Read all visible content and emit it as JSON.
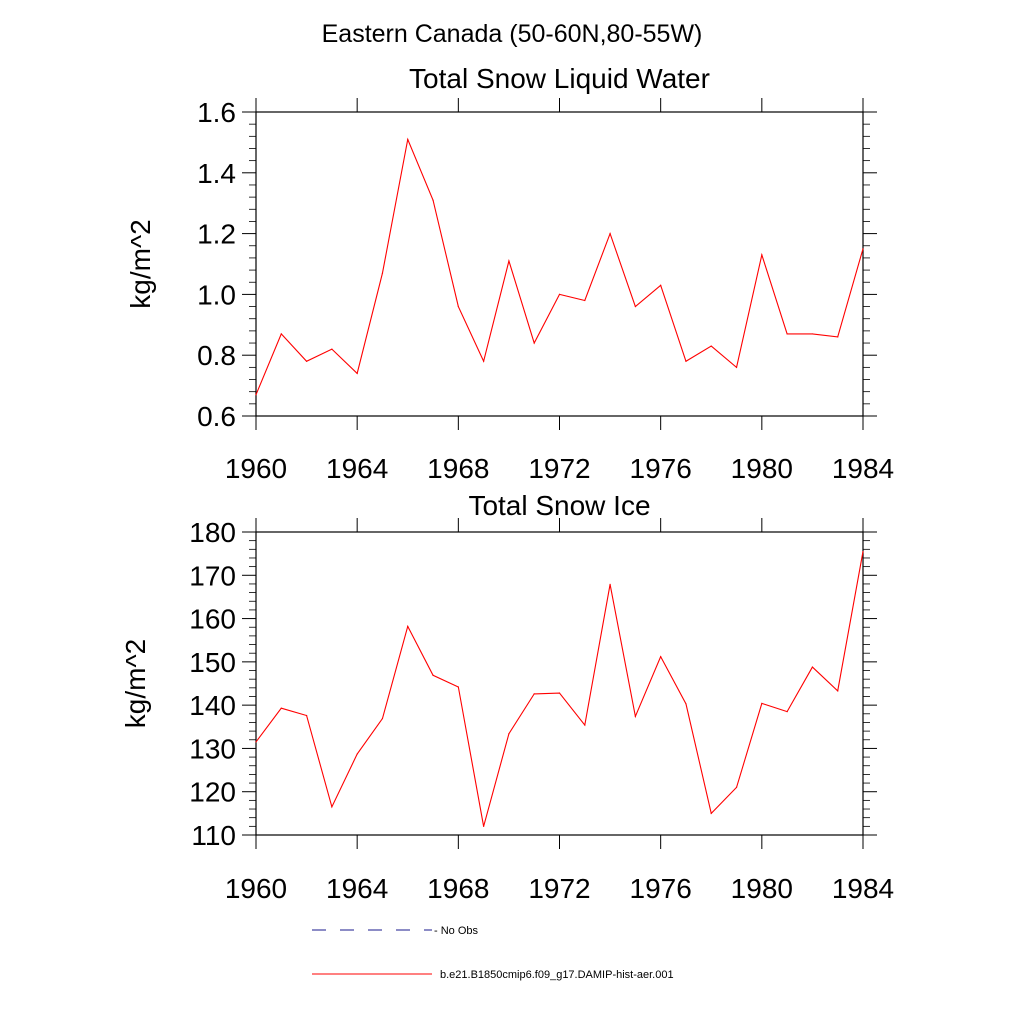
{
  "figure_title": "Eastern Canada (50-60N,80-55W)",
  "colors": {
    "series": "#ff0000",
    "obs": "#1a1a8c",
    "axis": "#000000"
  },
  "legend": [
    {
      "label": "- No Obs",
      "style": "dashed",
      "color": "#1a1a8c"
    },
    {
      "label": "b.e21.B1850cmip6.f09_g17.DAMIP-hist-aer.001",
      "style": "solid",
      "color": "#ff0000"
    }
  ],
  "chart_data": [
    {
      "type": "line",
      "title": "Total Snow Liquid Water",
      "xlabel": "",
      "ylabel": "kg/m^2",
      "xlim": [
        1960,
        1984
      ],
      "ylim": [
        0.6,
        1.6
      ],
      "x_ticks": [
        1960,
        1964,
        1968,
        1972,
        1976,
        1980,
        1984
      ],
      "y_ticks": [
        "0.6",
        "0.8",
        "1.0",
        "1.2",
        "1.4",
        "1.6"
      ],
      "grid": false,
      "x": [
        1960,
        1961,
        1962,
        1963,
        1964,
        1965,
        1966,
        1967,
        1968,
        1969,
        1970,
        1971,
        1972,
        1973,
        1974,
        1975,
        1976,
        1977,
        1978,
        1979,
        1980,
        1981,
        1982,
        1983,
        1984
      ],
      "series": [
        {
          "name": "b.e21.B1850cmip6.f09_g17.DAMIP-hist-aer.001",
          "values": [
            0.67,
            0.87,
            0.78,
            0.82,
            0.74,
            1.07,
            1.51,
            1.31,
            0.96,
            0.78,
            1.11,
            0.84,
            1.0,
            0.98,
            1.2,
            0.96,
            1.03,
            0.78,
            0.83,
            0.76,
            1.13,
            0.87,
            0.87,
            0.86,
            1.15
          ]
        }
      ]
    },
    {
      "type": "line",
      "title": "Total Snow Ice",
      "xlabel": "",
      "ylabel": "kg/m^2",
      "xlim": [
        1960,
        1984
      ],
      "ylim": [
        110,
        180
      ],
      "x_ticks": [
        1960,
        1964,
        1968,
        1972,
        1976,
        1980,
        1984
      ],
      "y_ticks": [
        "110",
        "120",
        "130",
        "140",
        "150",
        "160",
        "170",
        "180"
      ],
      "grid": false,
      "x": [
        1960,
        1961,
        1962,
        1963,
        1964,
        1965,
        1966,
        1967,
        1968,
        1969,
        1970,
        1971,
        1972,
        1973,
        1974,
        1975,
        1976,
        1977,
        1978,
        1979,
        1980,
        1981,
        1982,
        1983,
        1984
      ],
      "series": [
        {
          "name": "b.e21.B1850cmip6.f09_g17.DAMIP-hist-aer.001",
          "values": [
            131.5,
            139.3,
            137.6,
            116.5,
            128.7,
            136.9,
            158.2,
            146.9,
            144.2,
            112.0,
            133.4,
            142.6,
            142.8,
            135.4,
            167.9,
            137.4,
            151.2,
            140.3,
            115.0,
            121.0,
            140.4,
            138.5,
            148.8,
            143.3,
            175.5
          ]
        }
      ]
    }
  ]
}
